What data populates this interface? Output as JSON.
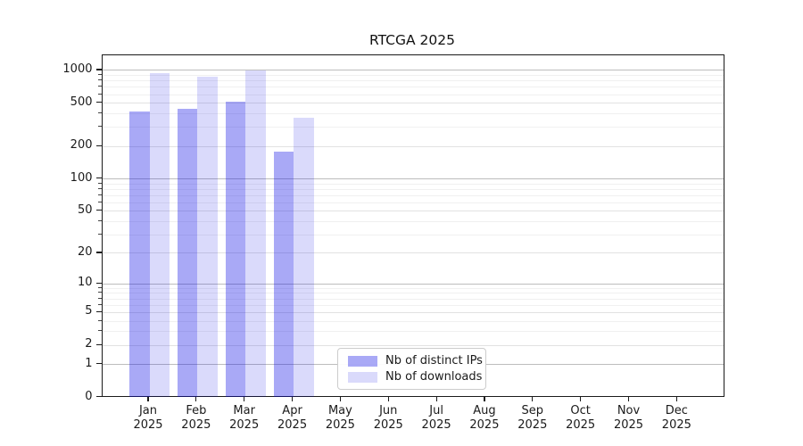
{
  "chart_data": {
    "type": "bar",
    "title": "RTCGA 2025",
    "categories": [
      {
        "month": "Jan",
        "year": "2025"
      },
      {
        "month": "Feb",
        "year": "2025"
      },
      {
        "month": "Mar",
        "year": "2025"
      },
      {
        "month": "Apr",
        "year": "2025"
      },
      {
        "month": "May",
        "year": "2025"
      },
      {
        "month": "Jun",
        "year": "2025"
      },
      {
        "month": "Jul",
        "year": "2025"
      },
      {
        "month": "Aug",
        "year": "2025"
      },
      {
        "month": "Sep",
        "year": "2025"
      },
      {
        "month": "Oct",
        "year": "2025"
      },
      {
        "month": "Nov",
        "year": "2025"
      },
      {
        "month": "Dec",
        "year": "2025"
      }
    ],
    "series": [
      {
        "name": "Nb of distinct IPs",
        "hex_on_white": "#a6a6f7",
        "color_css": "rgba(10,10,230,0.35)",
        "values": [
          420,
          440,
          520,
          180,
          null,
          null,
          null,
          null,
          null,
          null,
          null,
          null
        ]
      },
      {
        "name": "Nb of downloads",
        "hex_on_white": "#d9d9fb",
        "color_css": "rgba(10,10,230,0.15)",
        "values": [
          940,
          870,
          990,
          370,
          null,
          null,
          null,
          null,
          null,
          null,
          null,
          null
        ]
      }
    ],
    "y_axis": {
      "scale": "log1p",
      "max": 1390,
      "ticks": [
        0,
        1,
        2,
        5,
        10,
        20,
        50,
        100,
        200,
        500,
        1000
      ],
      "decade_ticks": [
        1,
        10,
        100,
        1000
      ]
    },
    "x_axis": {
      "year": "2025"
    },
    "grid": true,
    "legend": {
      "position": "lower-center-inside"
    },
    "colors": {
      "grid_major": "#bdbdbd",
      "grid_mid": "#e2e2e2",
      "grid_minor": "#f0f0f0",
      "spine": "#1a1a1a",
      "background": "#ffffff"
    }
  }
}
